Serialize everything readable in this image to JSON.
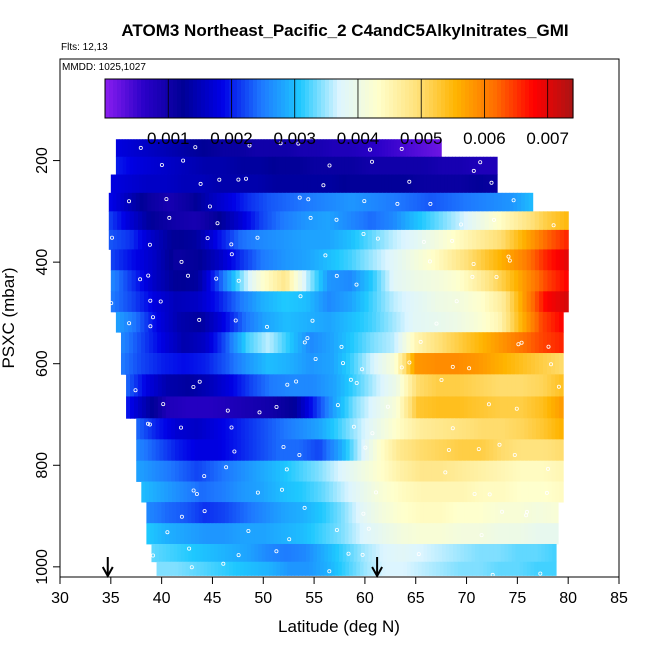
{
  "chart_data": {
    "type": "heatmap",
    "title": "ATOM3 Northeast_Pacific_2 C4andC5AlkyInitrates_GMI",
    "annotations": {
      "flights": "Flts: 12,13",
      "dates": "MMDD: 1025,1027"
    },
    "xlabel": "Latitude (deg N)",
    "ylabel": "PSXC (mbar)",
    "xlim": [
      30,
      85
    ],
    "ylim": [
      1020,
      0
    ],
    "y_reversed": true,
    "xticks": [
      30,
      35,
      40,
      45,
      50,
      55,
      60,
      65,
      70,
      75,
      80,
      85
    ],
    "xtick_labels": [
      "30",
      "35",
      "40",
      "45",
      "50",
      "55",
      "60",
      "65",
      "70",
      "75",
      "80",
      "85"
    ],
    "yticks": [
      200,
      400,
      600,
      800,
      1000
    ],
    "ytick_labels": [
      "200",
      "400",
      "600",
      "800",
      "1000"
    ],
    "colorbar": {
      "range": [
        0.0,
        0.0074
      ],
      "ticks": [
        0.001,
        0.002,
        0.003,
        0.004,
        0.005,
        0.006,
        0.007
      ],
      "tick_labels": [
        "0.001",
        "0.002",
        "0.003",
        "0.004",
        "0.005",
        "0.006",
        "0.007"
      ],
      "colors": [
        "#8b1ef0",
        "#2a00c8",
        "#000096",
        "#0000e6",
        "#1e78ff",
        "#1ec8ff",
        "#dcf5ff",
        "#ffffcc",
        "#ffe17a",
        "#ffb400",
        "#ff6e00",
        "#ff0000",
        "#aa1414"
      ]
    },
    "colormap_note": "",
    "arrows_latitude": [
      34.7,
      61.2
    ],
    "rows": [
      {
        "p": 175,
        "lat_min": 35.5,
        "lat_max": 67.5,
        "v": [
          0.0018,
          0.0017,
          0.0016,
          0.0015,
          0.0014,
          0.0013,
          0.0012,
          0.0011,
          0.0011,
          0.001,
          0.001,
          0.001,
          0.0009,
          0.0009,
          0.0008,
          0.0008,
          0.0007,
          0.0006,
          0.0005,
          0.0004,
          0.0003,
          0.0002
        ]
      },
      {
        "p": 210,
        "lat_min": 35.5,
        "lat_max": 73.0,
        "v": [
          0.002,
          0.0018,
          0.0017,
          0.0016,
          0.0015,
          0.0014,
          0.0014,
          0.0013,
          0.0013,
          0.0012,
          0.0012,
          0.0011,
          0.0011,
          0.0011,
          0.001,
          0.001,
          0.001,
          0.001,
          0.0009,
          0.0009,
          0.0008,
          0.0008
        ]
      },
      {
        "p": 245,
        "lat_min": 35.0,
        "lat_max": 73.0,
        "v": [
          0.0018,
          0.0017,
          0.0016,
          0.0016,
          0.0015,
          0.0015,
          0.0014,
          0.0014,
          0.0014,
          0.0013,
          0.0013,
          0.0013,
          0.0013,
          0.0012,
          0.0012,
          0.0012,
          0.0012,
          0.0011,
          0.0011,
          0.0011,
          0.0012,
          0.0011
        ]
      },
      {
        "p": 282,
        "lat_min": 34.8,
        "lat_max": 76.5,
        "v": [
          0.0019,
          0.0015,
          0.0011,
          0.0009,
          0.0011,
          0.0015,
          0.0018,
          0.0021,
          0.0023,
          0.0024,
          0.0025,
          0.0026,
          0.0027,
          0.0026,
          0.0025,
          0.0024,
          0.0023,
          0.0024,
          0.0025,
          0.0026,
          0.0027,
          0.003
        ]
      },
      {
        "p": 318,
        "lat_min": 34.8,
        "lat_max": 80.0,
        "v": [
          0.0022,
          0.0017,
          0.0012,
          0.001,
          0.0009,
          0.0012,
          0.0017,
          0.0022,
          0.0025,
          0.0027,
          0.0028,
          0.0026,
          0.0024,
          0.0026,
          0.003,
          0.0033,
          0.0036,
          0.004,
          0.0044,
          0.0048,
          0.0052,
          0.0055
        ]
      },
      {
        "p": 355,
        "lat_min": 34.8,
        "lat_max": 80.0,
        "v": [
          0.0023,
          0.0021,
          0.0016,
          0.0012,
          0.0013,
          0.0019,
          0.0024,
          0.0026,
          0.0027,
          0.0028,
          0.0028,
          0.003,
          0.0033,
          0.0036,
          0.0038,
          0.0041,
          0.0044,
          0.0047,
          0.005,
          0.0056,
          0.0062,
          0.0066
        ]
      },
      {
        "p": 395,
        "lat_min": 35.0,
        "lat_max": 80.0,
        "v": [
          0.0022,
          0.0019,
          0.0016,
          0.0011,
          0.0012,
          0.0016,
          0.0021,
          0.0025,
          0.0027,
          0.0028,
          0.003,
          0.0032,
          0.0035,
          0.0038,
          0.0041,
          0.0044,
          0.0048,
          0.0052,
          0.0056,
          0.006,
          0.0066,
          0.007
        ]
      },
      {
        "p": 437,
        "lat_min": 35.0,
        "lat_max": 80.0,
        "v": [
          0.0026,
          0.0021,
          0.0016,
          0.0012,
          0.0013,
          0.0023,
          0.0034,
          0.0043,
          0.0048,
          0.0036,
          0.0027,
          0.0026,
          0.0031,
          0.0038,
          0.004,
          0.0041,
          0.0043,
          0.0047,
          0.0052,
          0.0058,
          0.0064,
          0.0068
        ]
      },
      {
        "p": 478,
        "lat_min": 35.0,
        "lat_max": 80.0,
        "v": [
          0.0025,
          0.0022,
          0.0018,
          0.0015,
          0.0016,
          0.002,
          0.0025,
          0.0029,
          0.0031,
          0.003,
          0.0026,
          0.0028,
          0.0032,
          0.0036,
          0.0038,
          0.004,
          0.0041,
          0.0043,
          0.0047,
          0.0058,
          0.0068,
          0.0071
        ]
      },
      {
        "p": 518,
        "lat_min": 35.5,
        "lat_max": 79.5,
        "v": [
          0.0028,
          0.0024,
          0.0018,
          0.0014,
          0.0013,
          0.0018,
          0.0024,
          0.0028,
          0.003,
          0.0029,
          0.0028,
          0.003,
          0.0032,
          0.0035,
          0.0038,
          0.0039,
          0.004,
          0.0042,
          0.0045,
          0.0055,
          0.0064,
          0.0068
        ]
      },
      {
        "p": 558,
        "lat_min": 36.0,
        "lat_max": 79.5,
        "v": [
          0.0026,
          0.0022,
          0.0018,
          0.0014,
          0.0016,
          0.0023,
          0.0032,
          0.0036,
          0.0031,
          0.0026,
          0.0028,
          0.0031,
          0.0034,
          0.0036,
          0.0045,
          0.0049,
          0.0052,
          0.0055,
          0.0058,
          0.0061,
          0.0064,
          0.0066
        ]
      },
      {
        "p": 600,
        "lat_min": 36.0,
        "lat_max": 79.5,
        "v": [
          0.0025,
          0.0022,
          0.002,
          0.0019,
          0.002,
          0.0023,
          0.0027,
          0.003,
          0.0029,
          0.0027,
          0.0028,
          0.0032,
          0.0037,
          0.0042,
          0.0058,
          0.0059,
          0.0059,
          0.0058,
          0.0056,
          0.0054,
          0.0052,
          0.005
        ]
      },
      {
        "p": 642,
        "lat_min": 36.5,
        "lat_max": 79.5,
        "v": [
          0.0024,
          0.0018,
          0.0014,
          0.0013,
          0.0015,
          0.0018,
          0.0022,
          0.0025,
          0.0026,
          0.0026,
          0.0028,
          0.0032,
          0.0036,
          0.004,
          0.005,
          0.0052,
          0.0052,
          0.0051,
          0.005,
          0.005,
          0.0051,
          0.0054
        ]
      },
      {
        "p": 687,
        "lat_min": 36.5,
        "lat_max": 79.5,
        "v": [
          0.002,
          0.0014,
          0.0008,
          0.0007,
          0.0007,
          0.0008,
          0.0009,
          0.001,
          0.0012,
          0.002,
          0.0028,
          0.0034,
          0.0038,
          0.0042,
          0.0053,
          0.0054,
          0.0054,
          0.0053,
          0.0052,
          0.0052,
          0.0054,
          0.0058
        ]
      },
      {
        "p": 728,
        "lat_min": 37.5,
        "lat_max": 79.5,
        "v": [
          0.0024,
          0.002,
          0.0017,
          0.0016,
          0.0018,
          0.002,
          0.0022,
          0.0024,
          0.0026,
          0.0028,
          0.0032,
          0.0036,
          0.004,
          0.0044,
          0.0047,
          0.0048,
          0.0049,
          0.005,
          0.005,
          0.0051,
          0.0053,
          0.0056
        ]
      },
      {
        "p": 770,
        "lat_min": 37.5,
        "lat_max": 79.5,
        "v": [
          0.0026,
          0.0023,
          0.002,
          0.0018,
          0.0018,
          0.002,
          0.0022,
          0.0024,
          0.0024,
          0.0022,
          0.0028,
          0.0036,
          0.0043,
          0.0048,
          0.005,
          0.0051,
          0.0052,
          0.0052,
          0.005,
          0.0049,
          0.0049,
          0.005
        ]
      },
      {
        "p": 812,
        "lat_min": 37.5,
        "lat_max": 79.5,
        "v": [
          0.0028,
          0.0026,
          0.0024,
          0.0022,
          0.0024,
          0.0026,
          0.0028,
          0.003,
          0.0032,
          0.0034,
          0.0037,
          0.004,
          0.0043,
          0.0046,
          0.0048,
          0.0048,
          0.0047,
          0.0046,
          0.0045,
          0.0044,
          0.0044,
          0.0045
        ]
      },
      {
        "p": 852,
        "lat_min": 38.0,
        "lat_max": 79.5,
        "v": [
          0.003,
          0.0028,
          0.0026,
          0.0024,
          0.0025,
          0.0027,
          0.0028,
          0.003,
          0.0031,
          0.0033,
          0.0036,
          0.0039,
          0.0042,
          0.0044,
          0.0045,
          0.0045,
          0.0045,
          0.0044,
          0.0044,
          0.0043,
          0.0043,
          0.0044
        ]
      },
      {
        "p": 893,
        "lat_min": 38.5,
        "lat_max": 79.0,
        "v": [
          0.0026,
          0.0024,
          0.0023,
          0.0021,
          0.0022,
          0.0024,
          0.0026,
          0.0028,
          0.0029,
          0.0031,
          0.0034,
          0.0038,
          0.0041,
          0.0043,
          0.0044,
          0.0044,
          0.0043,
          0.0043,
          0.0042,
          0.0042,
          0.0041,
          0.0042
        ]
      },
      {
        "p": 935,
        "lat_min": 38.5,
        "lat_max": 79.0,
        "v": [
          0.0031,
          0.0029,
          0.0028,
          0.0027,
          0.0027,
          0.0028,
          0.0028,
          0.0029,
          0.003,
          0.0032,
          0.0034,
          0.0037,
          0.0039,
          0.0041,
          0.0042,
          0.0042,
          0.0041,
          0.0041,
          0.004,
          0.004,
          0.0039,
          0.0039
        ]
      },
      {
        "p": 975,
        "lat_min": 39.0,
        "lat_max": 78.8,
        "v": [
          0.0033,
          0.0032,
          0.0031,
          0.003,
          0.0029,
          0.0028,
          0.0026,
          0.0025,
          0.0026,
          0.0029,
          0.0032,
          0.0035,
          0.0037,
          0.0038,
          0.0037,
          0.0036,
          0.0035,
          0.0034,
          0.0034,
          0.0033,
          0.0033,
          0.0032
        ]
      },
      {
        "p": 1005,
        "lat_min": 39.5,
        "lat_max": 78.8,
        "v": [
          0.0034,
          0.0034,
          0.0033,
          0.0032,
          0.0031,
          0.003,
          0.0029,
          0.0027,
          0.0027,
          0.0029,
          0.0032,
          0.0035,
          0.0037,
          0.0037,
          0.0036,
          0.0035,
          0.0034,
          0.0034,
          0.0033,
          0.0033,
          0.0032,
          0.0032
        ]
      }
    ]
  }
}
